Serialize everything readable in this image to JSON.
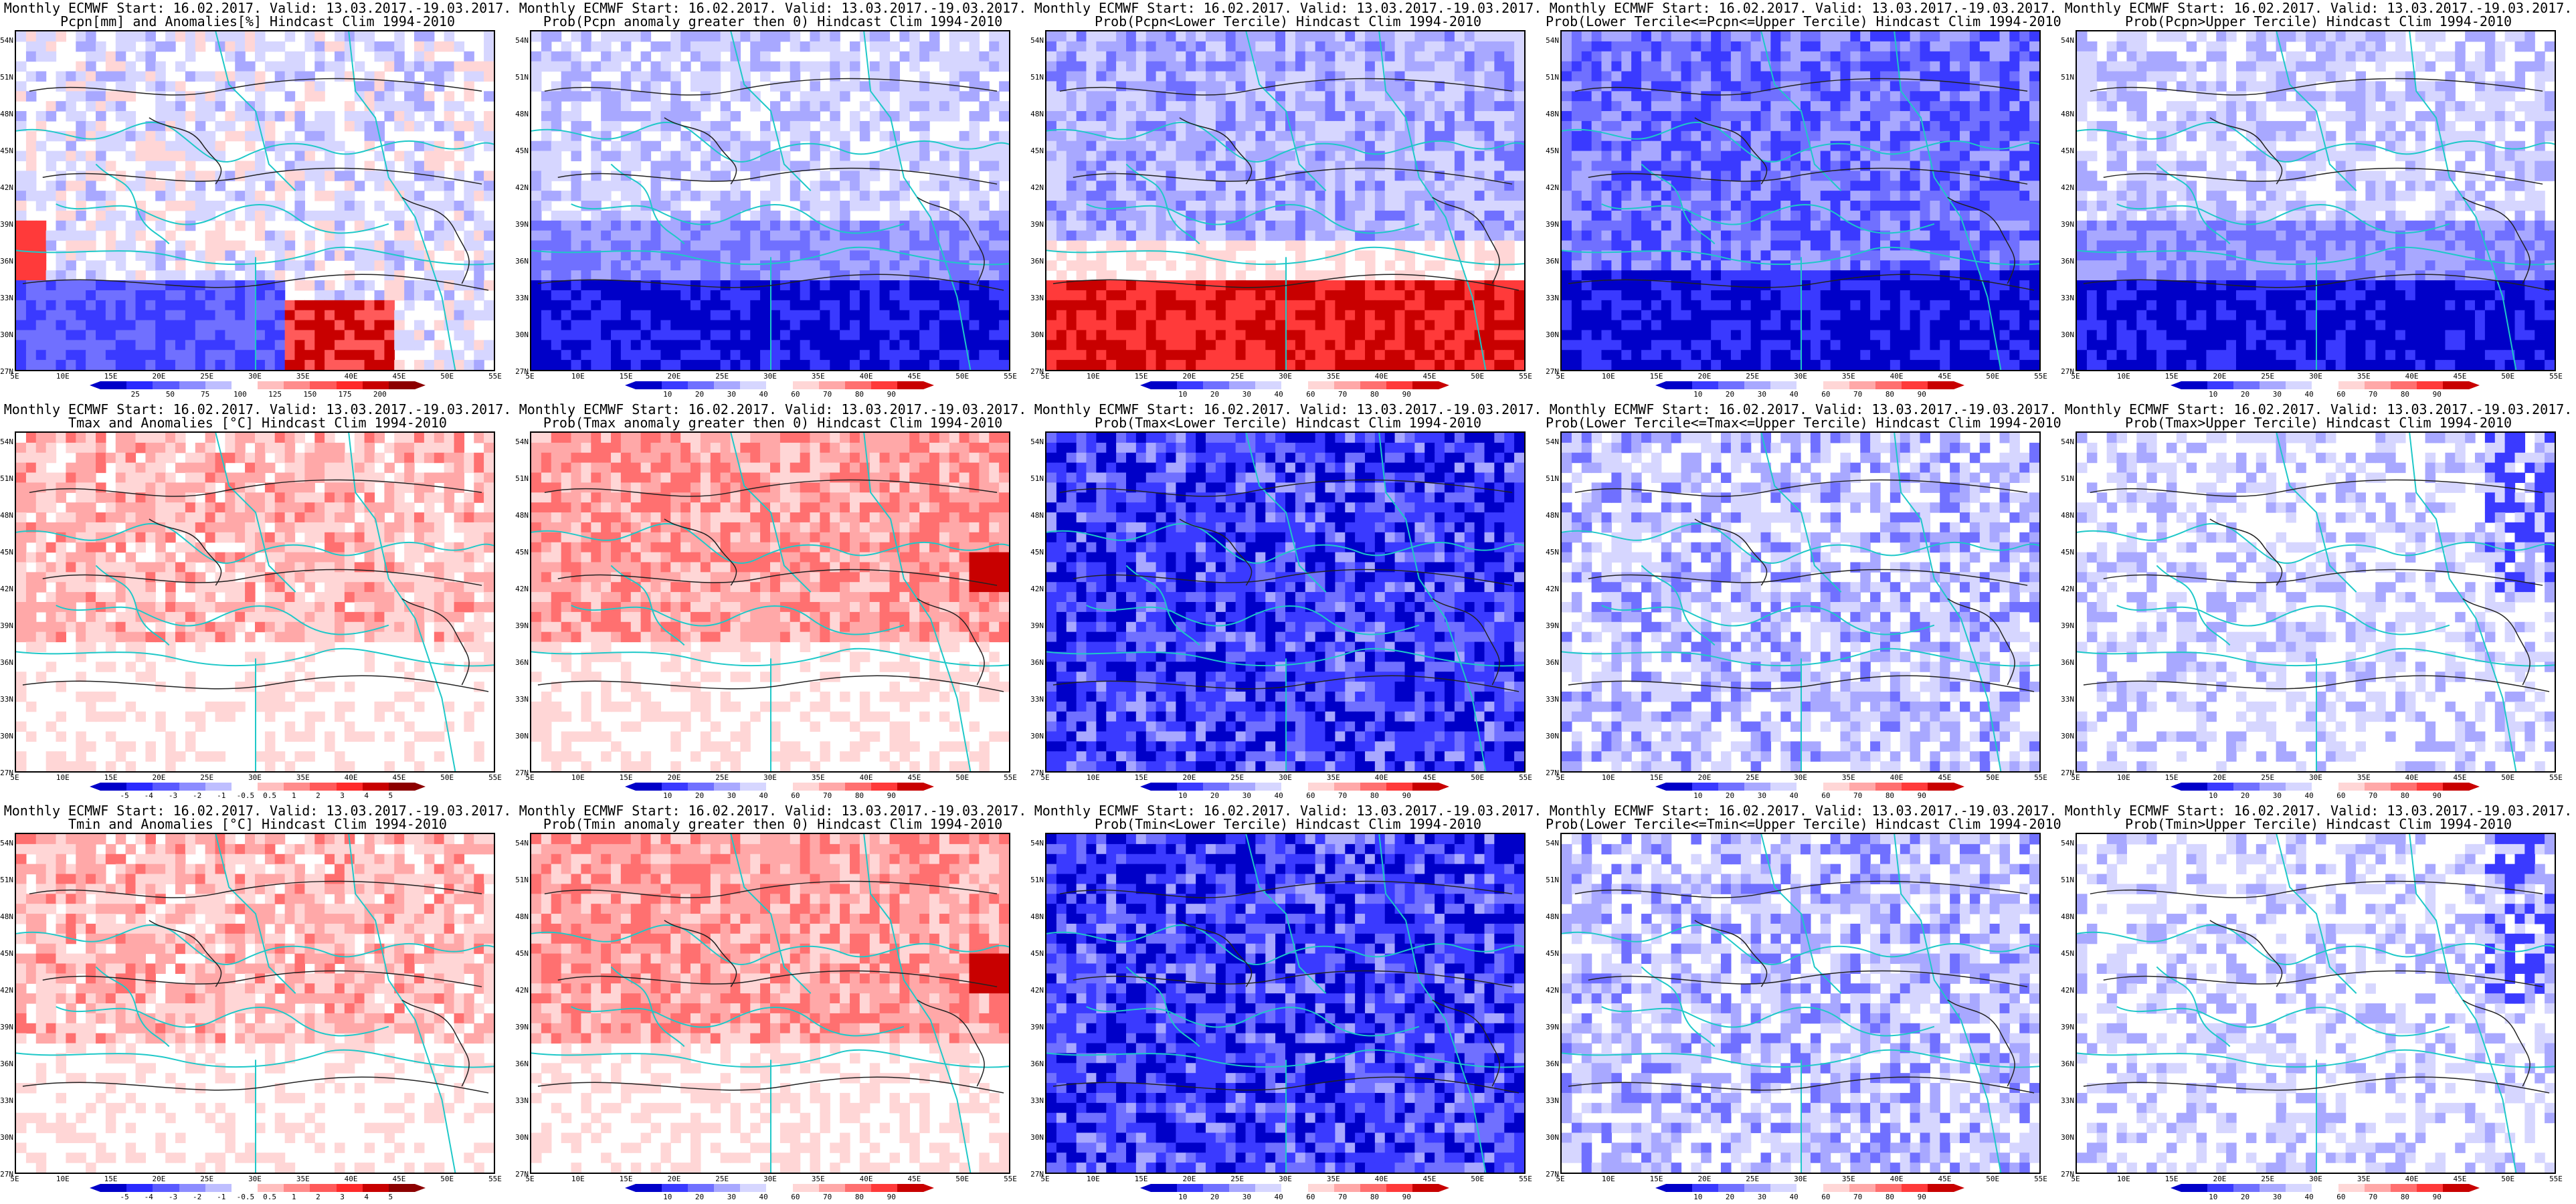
{
  "lat_labels": [
    "54N",
    "51N",
    "48N",
    "45N",
    "42N",
    "39N",
    "36N",
    "33N",
    "30N",
    "27N"
  ],
  "lon_labels": [
    "5E",
    "10E",
    "15E",
    "20E",
    "25E",
    "30E",
    "35E",
    "40E",
    "45E",
    "50E",
    "55E"
  ],
  "colorbars": {
    "pcpn_anom": [
      "25",
      "50",
      "75",
      "100",
      "125",
      "150",
      "175",
      "200"
    ],
    "prob": [
      "10",
      "20",
      "30",
      "40",
      "60",
      "70",
      "80",
      "90"
    ],
    "temp_anom": [
      "-5",
      "-4",
      "-3",
      "-2",
      "-1",
      "-0.5",
      "0.5",
      "1",
      "2",
      "3",
      "4",
      "5"
    ],
    "temp_anom_r2": [
      "-5",
      "-4",
      "-3",
      "-2",
      "-1",
      "-0.5",
      "0.5",
      "1",
      "2",
      "3",
      "4",
      "5"
    ]
  },
  "palettes": {
    "blue_red": [
      "#0000c8",
      "#2a2aff",
      "#5a5aff",
      "#8c8cff",
      "#bebeff",
      "#ffffff",
      "#ffbebe",
      "#ff8c8c",
      "#ff5a5a",
      "#ff2a2a",
      "#c80000",
      "#8c0000"
    ],
    "prob": [
      "#0000c8",
      "#3a3aff",
      "#7070ff",
      "#a8a8ff",
      "#d6d6ff",
      "#ffffff",
      "#ffd6d6",
      "#ffa8a8",
      "#ff7070",
      "#ff3a3a",
      "#c80000"
    ]
  },
  "panels": [
    {
      "line1": "Monthly ECMWF Start: 16.02.2017. Valid: 13.03.2017.-19.03.2017.",
      "line2": "Pcpn[mm] and Anomalies[%] Hindcast Clim 1994-2010",
      "cbar": "pcpn_anom",
      "theme": "pcpn_anom"
    },
    {
      "line1": "Monthly ECMWF Start: 16.02.2017. Valid: 13.03.2017.-19.03.2017.",
      "line2": "Prob(Pcpn anomaly greater then 0) Hindcast Clim 1994-2010",
      "cbar": "prob",
      "theme": "pcpn_pos"
    },
    {
      "line1": "Monthly ECMWF Start: 16.02.2017. Valid: 13.03.2017.-19.03.2017.",
      "line2": "Prob(Pcpn<Lower Tercile) Hindcast Clim 1994-2010",
      "cbar": "prob",
      "theme": "pcpn_low"
    },
    {
      "line1": "Monthly ECMWF Start: 16.02.2017. Valid: 13.03.2017.-19.03.2017.",
      "line2": "Prob(Lower Tercile<=Pcpn<=Upper Tercile) Hindcast Clim 1994-2010",
      "cbar": "prob",
      "theme": "pcpn_mid"
    },
    {
      "line1": "Monthly ECMWF Start: 16.02.2017. Valid: 13.03.2017.-19.03.2017.",
      "line2": "Prob(Pcpn>Upper Tercile) Hindcast Clim 1994-2010",
      "cbar": "prob",
      "theme": "pcpn_up"
    },
    {
      "line1": "Monthly ECMWF Start: 16.02.2017. Valid: 13.03.2017.-19.03.2017.",
      "line2": "Tmax and Anomalies [°C] Hindcast Clim 1994-2010",
      "cbar": "temp_anom",
      "theme": "t_anom"
    },
    {
      "line1": "Monthly ECMWF Start: 16.02.2017. Valid: 13.03.2017.-19.03.2017.",
      "line2": "Prob(Tmax anomaly greater then 0) Hindcast Clim 1994-2010",
      "cbar": "prob",
      "theme": "t_pos"
    },
    {
      "line1": "Monthly ECMWF Start: 16.02.2017. Valid: 13.03.2017.-19.03.2017.",
      "line2": "Prob(Tmax<Lower Tercile) Hindcast Clim 1994-2010",
      "cbar": "prob",
      "theme": "t_low"
    },
    {
      "line1": "Monthly ECMWF Start: 16.02.2017. Valid: 13.03.2017.-19.03.2017.",
      "line2": "Prob(Lower Tercile<=Tmax<=Upper Tercile) Hindcast Clim 1994-2010",
      "cbar": "prob",
      "theme": "t_mid"
    },
    {
      "line1": "Monthly ECMWF Start: 16.02.2017. Valid: 13.03.2017.-19.03.2017.",
      "line2": "Prob(Tmax>Upper Tercile) Hindcast Clim 1994-2010",
      "cbar": "prob",
      "theme": "t_up"
    },
    {
      "line1": "Monthly ECMWF Start: 16.02.2017. Valid: 13.03.2017.-19.03.2017.",
      "line2": "Tmin and Anomalies [°C] Hindcast Clim 1994-2010",
      "cbar": "temp_anom_r2",
      "theme": "t_anom"
    },
    {
      "line1": "Monthly ECMWF Start: 16.02.2017. Valid: 13.03.2017.-19.03.2017.",
      "line2": "Prob(Tmin anomaly greater then 0) Hindcast Clim 1994-2010",
      "cbar": "prob",
      "theme": "t_pos"
    },
    {
      "line1": "Monthly ECMWF Start: 16.02.2017. Valid: 13.03.2017.-19.03.2017.",
      "line2": "Prob(Tmin<Lower Tercile) Hindcast Clim 1994-2010",
      "cbar": "prob",
      "theme": "t_low"
    },
    {
      "line1": "Monthly ECMWF Start: 16.02.2017. Valid: 13.03.2017.-19.03.2017.",
      "line2": "Prob(Lower Tercile<=Tmin<=Upper Tercile) Hindcast Clim 1994-2010",
      "cbar": "prob",
      "theme": "t_mid"
    },
    {
      "line1": "Monthly ECMWF Start: 16.02.2017. Valid: 13.03.2017.-19.03.2017.",
      "line2": "Prob(Tmin>Upper Tercile) Hindcast Clim 1994-2010",
      "cbar": "prob",
      "theme": "t_up"
    }
  ]
}
